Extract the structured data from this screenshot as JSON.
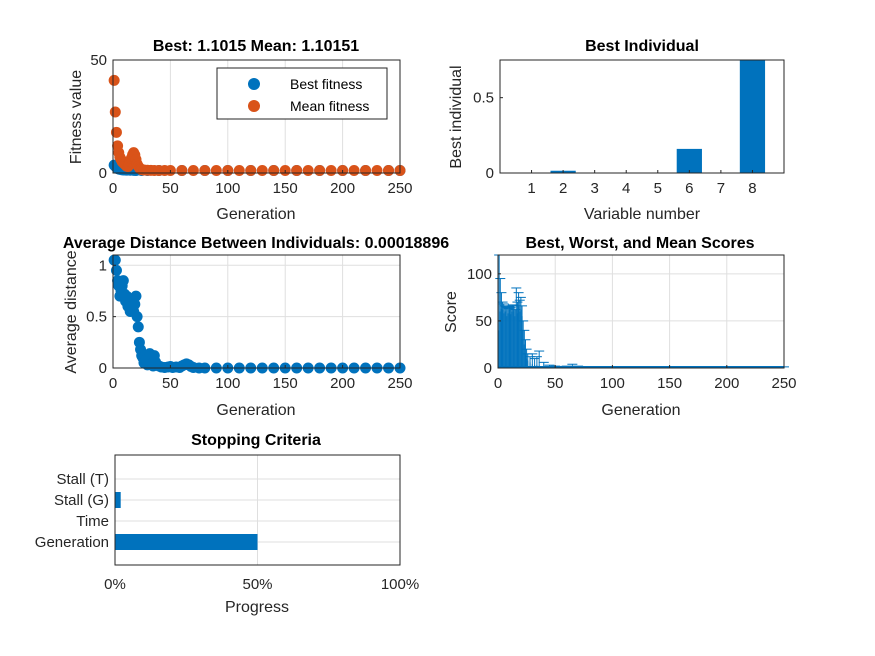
{
  "colors": {
    "blue": "#0072bd",
    "orange": "#d95319"
  },
  "chart_data": [
    {
      "id": "fitness",
      "type": "scatter",
      "title": "Best: 1.1015 Mean: 1.10151",
      "xlabel": "Generation",
      "ylabel": "Fitness value",
      "xlim": [
        0,
        250
      ],
      "ylim": [
        0,
        50
      ],
      "xticks": [
        0,
        50,
        100,
        150,
        200,
        250
      ],
      "yticks": [
        0,
        50
      ],
      "grid": true,
      "legend": {
        "placement": "top-right",
        "entries": [
          "Best fitness",
          "Mean fitness"
        ]
      },
      "series": [
        {
          "name": "Best fitness",
          "color": "#0072bd",
          "x": [
            1,
            2,
            3,
            4,
            5,
            6,
            8,
            10,
            12,
            15,
            18,
            20,
            25,
            30,
            40,
            60,
            80,
            100,
            120,
            140,
            160,
            180,
            200,
            220,
            240,
            250
          ],
          "y": [
            3.5,
            3.0,
            2.5,
            2.0,
            1.8,
            1.6,
            1.4,
            1.3,
            1.25,
            1.2,
            1.15,
            1.12,
            1.11,
            1.105,
            1.103,
            1.102,
            1.102,
            1.1015,
            1.1015,
            1.1015,
            1.1015,
            1.1015,
            1.1015,
            1.1015,
            1.1015,
            1.1015
          ]
        },
        {
          "name": "Mean fitness",
          "color": "#d95319",
          "x": [
            1,
            2,
            3,
            4,
            5,
            6,
            7,
            8,
            9,
            10,
            11,
            12,
            13,
            14,
            15,
            16,
            17,
            18,
            19,
            20,
            21,
            22,
            23,
            24,
            25,
            27,
            30,
            33,
            36,
            40,
            45,
            50,
            60,
            70,
            80,
            90,
            100,
            110,
            120,
            130,
            140,
            150,
            160,
            170,
            180,
            190,
            200,
            210,
            220,
            230,
            240,
            250
          ],
          "y": [
            41,
            27,
            18,
            12,
            9,
            7,
            6,
            5,
            4.5,
            4,
            3.5,
            3,
            2.8,
            3.5,
            5,
            6.5,
            8,
            9,
            8,
            6,
            4,
            3,
            2.2,
            1.8,
            1.5,
            1.3,
            1.2,
            1.15,
            1.12,
            1.11,
            1.105,
            1.103,
            1.102,
            1.102,
            1.1015,
            1.1015,
            1.1015,
            1.1015,
            1.1015,
            1.1015,
            1.1015,
            1.1015,
            1.1015,
            1.1015,
            1.1015,
            1.1015,
            1.1015,
            1.1015,
            1.1015,
            1.1015,
            1.1015,
            1.1015
          ]
        }
      ]
    },
    {
      "id": "best-individual",
      "type": "bar",
      "title": "Best Individual",
      "xlabel": "Variable number",
      "ylabel": "Best individual",
      "categories": [
        1,
        2,
        3,
        4,
        5,
        6,
        7,
        8
      ],
      "values": [
        0,
        0.015,
        0,
        0,
        0,
        0.16,
        0,
        0.76
      ],
      "xlim": [
        0,
        9
      ],
      "ylim": [
        0,
        0.75
      ],
      "yticks": [
        0,
        0.5
      ],
      "grid": false
    },
    {
      "id": "avg-distance",
      "type": "scatter",
      "title": "Average Distance Between Individuals: 0.00018896",
      "xlabel": "Generation",
      "ylabel": "Average distance",
      "xlim": [
        0,
        250
      ],
      "ylim": [
        0,
        1.1
      ],
      "xticks": [
        0,
        50,
        100,
        150,
        200,
        250
      ],
      "yticks": [
        0,
        0.5,
        1
      ],
      "grid": true,
      "series": [
        {
          "color": "#0072bd",
          "x": [
            1,
            2,
            3,
            4,
            5,
            6,
            7,
            8,
            9,
            10,
            11,
            12,
            13,
            14,
            15,
            16,
            17,
            18,
            19,
            20,
            21,
            22,
            23,
            24,
            25,
            26,
            27,
            28,
            29,
            30,
            31,
            32,
            33,
            34,
            35,
            36,
            37,
            38,
            40,
            42,
            45,
            48,
            50,
            52,
            55,
            58,
            60,
            62,
            64,
            66,
            68,
            70,
            75,
            80,
            90,
            100,
            110,
            120,
            130,
            140,
            150,
            160,
            170,
            180,
            190,
            200,
            210,
            220,
            230,
            240,
            250
          ],
          "y": [
            1.05,
            1.05,
            0.95,
            0.85,
            0.8,
            0.7,
            0.75,
            0.8,
            0.85,
            0.72,
            0.65,
            0.7,
            0.6,
            0.62,
            0.55,
            0.65,
            0.6,
            0.55,
            0.62,
            0.7,
            0.5,
            0.4,
            0.25,
            0.18,
            0.12,
            0.1,
            0.05,
            0.12,
            0.08,
            0.03,
            0.1,
            0.14,
            0.08,
            0.04,
            0.02,
            0.12,
            0.06,
            0.03,
            0.02,
            0.01,
            0.005,
            0.01,
            0.015,
            0.005,
            0.01,
            0.005,
            0.02,
            0.03,
            0.04,
            0.03,
            0.015,
            0.005,
            0.0005,
            0.0003,
            0.0002,
            0.0002,
            0.0002,
            0.0002,
            0.0002,
            0.0002,
            0.0002,
            0.0002,
            0.0002,
            0.0002,
            0.0002,
            0.0002,
            0.0002,
            0.0002,
            0.0002,
            0.0002,
            0.0002
          ]
        }
      ]
    },
    {
      "id": "scores",
      "type": "bar",
      "title": "Best, Worst, and Mean Scores",
      "xlabel": "Generation",
      "ylabel": "Score",
      "xlim": [
        0,
        250
      ],
      "ylim": [
        0,
        120
      ],
      "xticks": [
        0,
        50,
        100,
        150,
        200,
        250
      ],
      "yticks": [
        0,
        50,
        100
      ],
      "grid": true,
      "x": [
        1,
        2,
        3,
        4,
        5,
        6,
        7,
        8,
        9,
        10,
        11,
        12,
        13,
        14,
        15,
        16,
        17,
        18,
        19,
        20,
        21,
        22,
        23,
        24,
        25,
        26,
        28,
        30,
        32,
        34,
        36,
        40,
        45,
        50,
        60,
        65,
        70,
        80,
        100,
        120,
        140,
        160,
        180,
        200,
        220,
        240,
        250
      ],
      "mean": [
        40,
        60,
        63,
        62,
        58,
        60,
        61,
        55,
        58,
        62,
        57,
        60,
        63,
        60,
        55,
        62,
        58,
        65,
        60,
        62,
        55,
        40,
        25,
        15,
        10,
        8,
        6,
        4,
        3,
        3,
        2.5,
        2,
        1.5,
        1.2,
        1.2,
        1.5,
        1.2,
        1.1,
        1.1,
        1.1,
        1.1,
        1.1,
        1.1,
        1.1,
        1.1,
        1.1,
        1.1
      ],
      "worst": [
        120,
        95,
        80,
        70,
        68,
        66,
        65,
        64,
        63,
        65,
        64,
        66,
        67,
        66,
        62,
        85,
        70,
        80,
        72,
        75,
        66,
        50,
        40,
        30,
        20,
        15,
        12,
        15,
        10,
        12,
        18,
        6,
        3,
        2,
        2,
        4,
        2,
        1.2,
        1.2,
        1.2,
        1.2,
        1.2,
        1.2,
        1.2,
        1.2,
        1.2,
        1.2
      ]
    },
    {
      "id": "stopping",
      "type": "bar",
      "orientation": "horizontal",
      "title": "Stopping Criteria",
      "xlabel": "Progress",
      "categories": [
        "Stall (T)",
        "Stall (G)",
        "Time",
        "Generation"
      ],
      "values": [
        0,
        2,
        0,
        50
      ],
      "xlim": [
        0,
        100
      ],
      "xticks": [
        "0%",
        "50%",
        "100%"
      ],
      "grid": true
    }
  ]
}
